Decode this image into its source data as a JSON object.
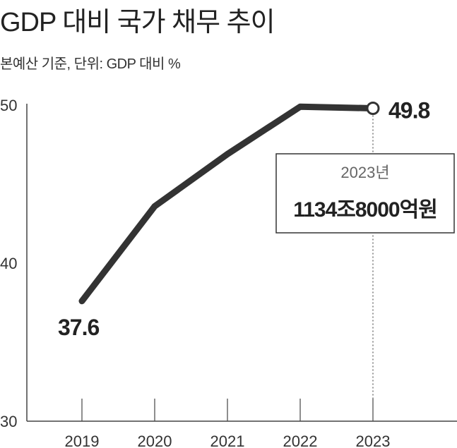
{
  "chart_data": {
    "type": "line",
    "title": "GDP 대비 국가 채무 추이",
    "subtitle": "본예산 기준, 단위: GDP 대비 %",
    "categories": [
      "2019",
      "2020",
      "2021",
      "2022",
      "2023"
    ],
    "values": [
      37.6,
      43.6,
      46.9,
      49.9,
      49.8
    ],
    "ylim": [
      30,
      50
    ],
    "yticks": [
      "30",
      "40",
      "50"
    ],
    "xlabel": "",
    "ylabel": "",
    "data_labels": {
      "first": "37.6",
      "last": "49.8"
    },
    "annotation": {
      "year": "2023년",
      "amount": "1134조8000억원"
    },
    "colors": {
      "line": "#333333",
      "axis": "#444444",
      "box_border": "#333333"
    }
  }
}
